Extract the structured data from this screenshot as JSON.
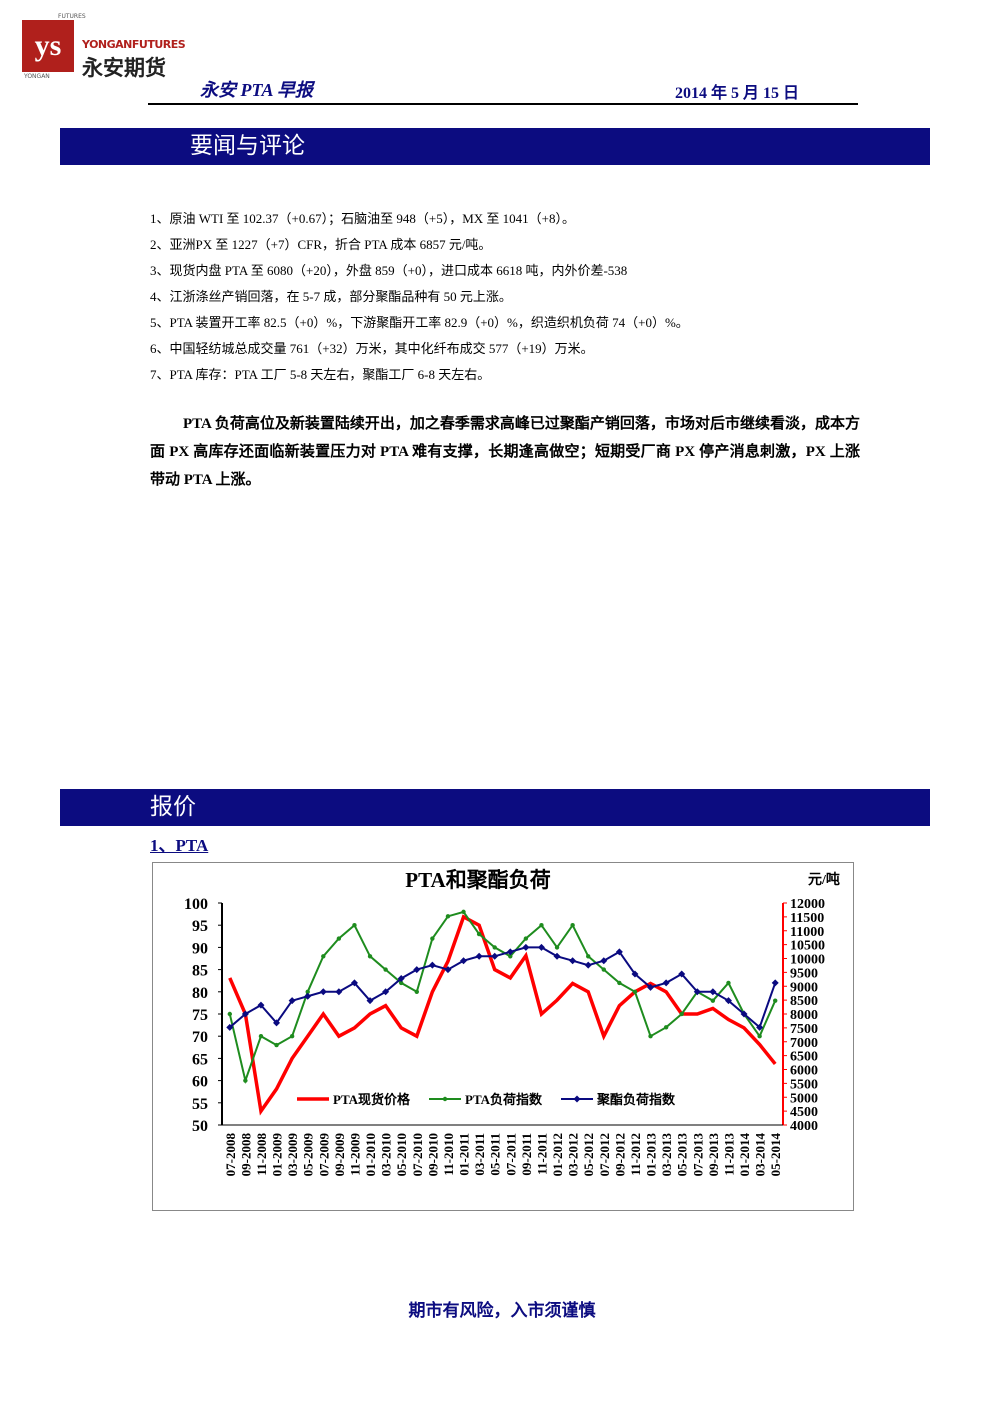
{
  "header": {
    "logo_top": "FUTURES",
    "logo_en": "YONGANFUTURES",
    "logo_cn": "永安期货",
    "logo_bottom": "YONGAN",
    "report_title": "永安 PTA 早报",
    "date": "2014 年 5 月 15 日"
  },
  "news": {
    "title": "要闻与评论",
    "items": [
      "1、原油 WTI 至 102.37（+0.67）；石脑油至 948（+5），MX 至 1041（+8）。",
      "2、亚洲PX 至 1227（+7）CFR，折合 PTA 成本 6857 元/吨。",
      "3、现货内盘 PTA 至 6080（+20），外盘 859（+0），进口成本 6618 吨，内外价差-538",
      "4、江浙涤丝产销回落，在 5-7 成，部分聚酯品种有 50 元上涨。",
      "5、PTA 装置开工率 82.5（+0）%，下游聚酯开工率 82.9（+0）%，织造织机负荷 74（+0）%。",
      "6、中国轻纺城总成交量 761（+32）万米，其中化纤布成交 577（+19）万米。",
      "7、PTA  库存：PTA 工厂 5-8 天左右，聚酯工厂 6-8 天左右。"
    ],
    "commentary": "PTA 负荷高位及新装置陆续开出，加之春季需求高峰已过聚酯产销回落，市场对后市继续看淡，成本方面 PX 高库存还面临新装置压力对 PTA 难有支撑，长期逢高做空；短期受厂商 PX 停产消息刺激，PX 上涨带动 PTA 上涨。"
  },
  "quotes": {
    "title": "报价",
    "subtitle": "1、PTA"
  },
  "chart_data": {
    "type": "line",
    "title": "PTA和聚酯负荷",
    "y2_label": "元/吨",
    "categories": [
      "07-2008",
      "09-2008",
      "11-2008",
      "01-2009",
      "03-2009",
      "05-2009",
      "07-2009",
      "09-2009",
      "11-2009",
      "01-2010",
      "03-2010",
      "05-2010",
      "07-2010",
      "09-2010",
      "11-2010",
      "01-2011",
      "03-2011",
      "05-2011",
      "07-2011",
      "09-2011",
      "11-2011",
      "01-2012",
      "03-2012",
      "05-2012",
      "07-2012",
      "09-2012",
      "11-2012",
      "01-2013",
      "03-2013",
      "05-2013",
      "07-2013",
      "09-2013",
      "11-2013",
      "01-2014",
      "03-2014",
      "05-2014"
    ],
    "series": [
      {
        "name": "PTA现货价格",
        "color": "#ff0000",
        "axis": "y2",
        "marker": "none",
        "values": [
          9300,
          8000,
          4500,
          5300,
          6400,
          7200,
          8000,
          7200,
          7500,
          8000,
          8300,
          7500,
          7200,
          8800,
          9900,
          11500,
          11200,
          9600,
          9300,
          10100,
          8000,
          8500,
          9100,
          8800,
          7200,
          8300,
          8800,
          9100,
          8800,
          8000,
          8000,
          8200,
          7800,
          7500,
          6900,
          6200
        ]
      },
      {
        "name": "PTA负荷指数",
        "color": "#1e8c1e",
        "marker": "circle",
        "values": [
          75,
          60,
          70,
          68,
          70,
          80,
          88,
          92,
          95,
          88,
          85,
          82,
          80,
          92,
          97,
          98,
          93,
          90,
          88,
          92,
          95,
          90,
          95,
          88,
          85,
          82,
          80,
          70,
          72,
          75,
          80,
          78,
          82,
          75,
          70,
          78
        ]
      },
      {
        "name": "聚酯负荷指数",
        "color": "#0a0a80",
        "marker": "diamond",
        "values": [
          72,
          75,
          77,
          73,
          78,
          79,
          80,
          80,
          82,
          78,
          80,
          83,
          85,
          86,
          85,
          87,
          88,
          88,
          89,
          90,
          90,
          88,
          87,
          86,
          87,
          89,
          84,
          81,
          82,
          84,
          80,
          80,
          78,
          75,
          72,
          82
        ]
      }
    ],
    "ylim": [
      50,
      100
    ],
    "yticks": [
      50,
      55,
      60,
      65,
      70,
      75,
      80,
      85,
      90,
      95,
      100
    ],
    "y2lim": [
      4000,
      12000
    ],
    "y2ticks": [
      4000,
      4500,
      5000,
      5500,
      6000,
      6500,
      7000,
      7500,
      8000,
      8500,
      9000,
      9500,
      10000,
      10500,
      11000,
      11500,
      12000
    ],
    "legend": "lower center"
  },
  "footer": "期市有风险，入市须谨慎"
}
